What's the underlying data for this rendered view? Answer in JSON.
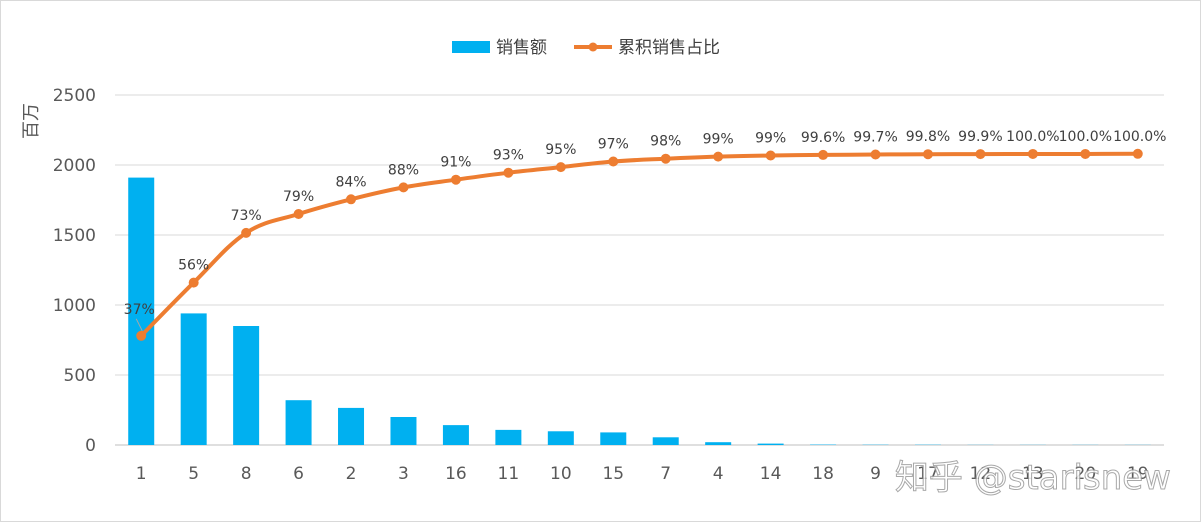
{
  "chart_data": {
    "type": "bar",
    "title": "",
    "xlabel": "",
    "ylabel": "百万",
    "ylim": [
      0,
      2500
    ],
    "yticks": [
      0,
      500,
      1000,
      1500,
      2000,
      2500
    ],
    "grid": true,
    "legend_position": "top",
    "categories": [
      "1",
      "5",
      "8",
      "6",
      "2",
      "3",
      "16",
      "11",
      "10",
      "15",
      "7",
      "4",
      "14",
      "18",
      "9",
      "17",
      "12",
      "13",
      "20",
      "19"
    ],
    "series": [
      {
        "name": "销售额",
        "type": "bar",
        "color": "#00b0f0",
        "values": [
          1910,
          940,
          850,
          320,
          265,
          200,
          142,
          108,
          98,
          90,
          55,
          20,
          10,
          3,
          2,
          2,
          1,
          1,
          1,
          1
        ]
      },
      {
        "name": "累积销售占比",
        "type": "line",
        "color": "#ed7d31",
        "values": [
          780,
          1160,
          1515,
          1650,
          1755,
          1840,
          1895,
          1945,
          1985,
          2025,
          2045,
          2060,
          2068,
          2072,
          2075,
          2077,
          2078,
          2079,
          2079,
          2080
        ],
        "labels": [
          "37%",
          "56%",
          "73%",
          "79%",
          "84%",
          "88%",
          "91%",
          "93%",
          "95%",
          "97%",
          "98%",
          "99%",
          "99%",
          "99.6%",
          "99.7%",
          "99.8%",
          "99.9%",
          "100.0%",
          "100.0%",
          "100.0%"
        ]
      }
    ]
  },
  "watermark": "知乎 @starisnew"
}
